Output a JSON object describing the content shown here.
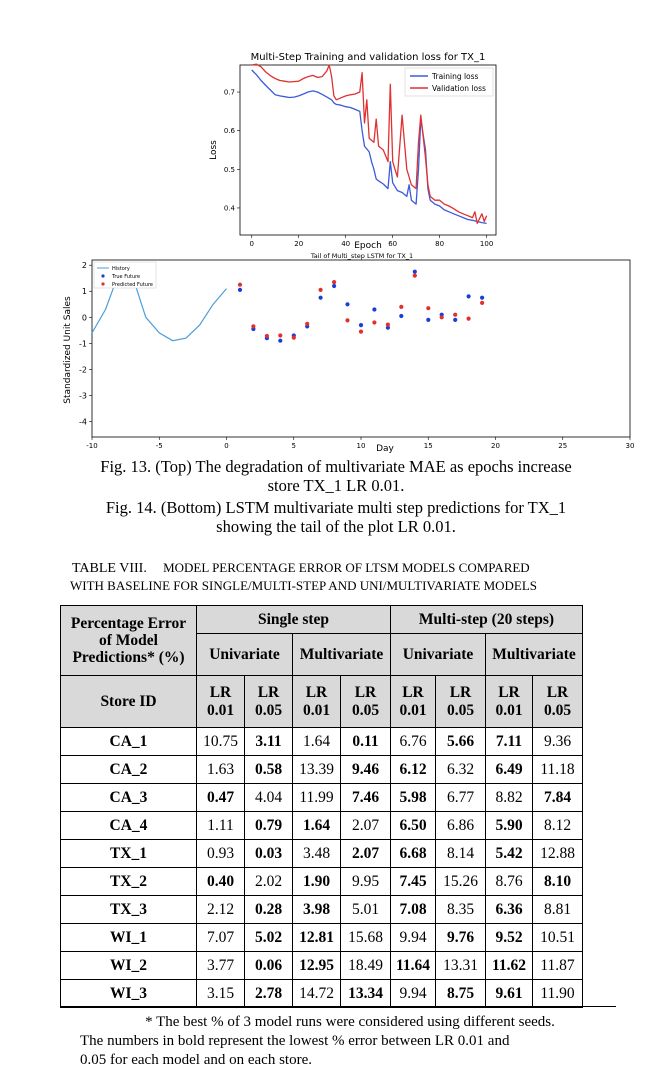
{
  "chart_data": [
    {
      "type": "line",
      "title": "Multi-Step Training and validation loss for TX_1",
      "xlabel": "Epoch",
      "ylabel": "Loss",
      "xlim": [
        -5,
        104
      ],
      "ylim": [
        0.33,
        0.77
      ],
      "xticks": [
        "0",
        "20",
        "40",
        "60",
        "80",
        "100"
      ],
      "yticks": [
        "0.4",
        "0.5",
        "0.6",
        "0.7"
      ],
      "legend_position": "top-right",
      "series": [
        {
          "name": "Training loss",
          "color": "#3b5bdb",
          "x": [
            0,
            2,
            4,
            6,
            8,
            10,
            12,
            14,
            16,
            18,
            20,
            22,
            24,
            26,
            28,
            30,
            32,
            34,
            35,
            36,
            38,
            40,
            42,
            44,
            46,
            47,
            48,
            50,
            51,
            52,
            53,
            54,
            56,
            58,
            59,
            60,
            61,
            62,
            64,
            66,
            67,
            68,
            70,
            71,
            72,
            74,
            75,
            76,
            78,
            80,
            82,
            84,
            86,
            88,
            90,
            92,
            94,
            96,
            98,
            100
          ],
          "y": [
            0.757,
            0.745,
            0.73,
            0.717,
            0.705,
            0.693,
            0.69,
            0.688,
            0.686,
            0.687,
            0.69,
            0.695,
            0.7,
            0.703,
            0.7,
            0.694,
            0.687,
            0.68,
            0.672,
            0.668,
            0.666,
            0.662,
            0.66,
            0.655,
            0.65,
            0.6,
            0.56,
            0.545,
            0.52,
            0.5,
            0.475,
            0.47,
            0.462,
            0.45,
            0.52,
            0.465,
            0.455,
            0.445,
            0.44,
            0.43,
            0.46,
            0.42,
            0.41,
            0.5,
            0.63,
            0.55,
            0.45,
            0.42,
            0.41,
            0.405,
            0.395,
            0.39,
            0.385,
            0.38,
            0.375,
            0.37,
            0.368,
            0.365,
            0.362,
            0.36
          ]
        },
        {
          "name": "Validation loss",
          "color": "#e03131",
          "x": [
            0,
            2,
            4,
            6,
            8,
            10,
            12,
            14,
            16,
            18,
            20,
            22,
            24,
            26,
            28,
            30,
            32,
            33,
            34,
            35,
            36,
            38,
            40,
            42,
            44,
            46,
            47,
            48,
            49,
            50,
            52,
            53,
            54,
            56,
            58,
            59,
            60,
            61,
            62,
            64,
            66,
            67,
            68,
            70,
            71,
            72,
            74,
            75,
            76,
            78,
            80,
            82,
            84,
            86,
            88,
            90,
            92,
            94,
            95,
            96,
            98,
            99,
            100
          ],
          "y": [
            0.77,
            0.772,
            0.765,
            0.752,
            0.742,
            0.735,
            0.73,
            0.728,
            0.726,
            0.727,
            0.728,
            0.735,
            0.74,
            0.743,
            0.738,
            0.74,
            0.755,
            0.77,
            0.74,
            0.69,
            0.68,
            0.685,
            0.69,
            0.693,
            0.695,
            0.7,
            0.75,
            0.62,
            0.68,
            0.58,
            0.57,
            0.63,
            0.56,
            0.55,
            0.52,
            0.72,
            0.52,
            0.5,
            0.48,
            0.64,
            0.5,
            0.48,
            0.46,
            0.45,
            0.57,
            0.64,
            0.53,
            0.46,
            0.43,
            0.42,
            0.42,
            0.41,
            0.405,
            0.398,
            0.39,
            0.385,
            0.38,
            0.375,
            0.39,
            0.36,
            0.385,
            0.365,
            0.38
          ]
        }
      ]
    },
    {
      "type": "scatter",
      "title": "Tail of Multi_step LSTM for TX_1",
      "xlabel": "Day",
      "ylabel": "Standardized Unit Sales",
      "xlim": [
        -10,
        30
      ],
      "ylim": [
        -4.6,
        2.2
      ],
      "xticks": [
        "-10",
        "-5",
        "0",
        "5",
        "10",
        "15",
        "20",
        "25",
        "30"
      ],
      "yticks": [
        "2",
        "1",
        "0",
        "-1",
        "-2",
        "-3",
        "-4"
      ],
      "legend_position": "top-left",
      "series": [
        {
          "name": "History",
          "color": "#4c9ed9",
          "mode": "line",
          "x": [
            -10,
            -9,
            -8,
            -7,
            -6,
            -5,
            -4,
            -3,
            -2,
            -1,
            0
          ],
          "y": [
            -0.6,
            0.3,
            1.7,
            1.6,
            0.0,
            -0.6,
            -0.9,
            -0.8,
            -0.3,
            0.5,
            1.1
          ]
        },
        {
          "name": "True Future",
          "color": "#1a3fd6",
          "mode": "points",
          "x": [
            1,
            2,
            3,
            4,
            5,
            6,
            7,
            8,
            9,
            10,
            11,
            12,
            13,
            14,
            15,
            16,
            17,
            18,
            19
          ],
          "y": [
            1.05,
            -0.45,
            -0.8,
            -0.9,
            -0.7,
            -0.35,
            0.75,
            1.2,
            0.5,
            -0.3,
            0.3,
            -0.4,
            0.05,
            1.75,
            -0.1,
            0.1,
            -0.1,
            0.8,
            0.75
          ]
        },
        {
          "name": "Predicted Future",
          "color": "#e03131",
          "mode": "points",
          "x": [
            1,
            2,
            3,
            4,
            5,
            6,
            7,
            8,
            9,
            10,
            11,
            12,
            13,
            14,
            15,
            16,
            17,
            18,
            19
          ],
          "y": [
            1.25,
            -0.35,
            -0.72,
            -0.7,
            -0.78,
            -0.25,
            1.05,
            1.35,
            -0.12,
            -0.55,
            -0.2,
            -0.28,
            0.4,
            1.6,
            0.35,
            0.0,
            0.1,
            -0.05,
            0.55
          ]
        }
      ]
    }
  ],
  "captions": {
    "fig13_line1": "Fig. 13. (Top) The degradation of multivariate MAE as epochs increase",
    "fig13_line2": "store TX_1 LR 0.01.",
    "fig14_line1": "Fig. 14. (Bottom) LSTM multivariate multi step predictions for TX_1",
    "fig14_line2": "showing the tail of the plot LR 0.01."
  },
  "table_caption": {
    "label": "TABLE VIII.",
    "line1": "MODEL PERCENTAGE ERROR OF LTSM MODELS COMPARED",
    "line2": "WITH BASELINE FOR SINGLE/MULTI-STEP AND UNI/MULTIVARIATE MODELS"
  },
  "table": {
    "corner": "Percentage Error of Model Predictions* (%)",
    "group_single": "Single step",
    "group_multi": "Multi-step (20 steps)",
    "univariate": "Univariate",
    "multivariate": "Multivariate",
    "store_id": "Store ID",
    "lr_headers": [
      "LR 0.01",
      "LR 0.05",
      "LR 0.01",
      "LR 0.05",
      "LR 0.01",
      "LR 0.05",
      "LR 0.01",
      "LR 0.05"
    ],
    "rows": [
      {
        "store": "CA_1",
        "values": [
          "10.75",
          "3.11",
          "1.64",
          "0.11",
          "6.76",
          "5.66",
          "7.11",
          "9.36"
        ],
        "bold": [
          false,
          true,
          false,
          true,
          false,
          true,
          true,
          false
        ]
      },
      {
        "store": "CA_2",
        "values": [
          "1.63",
          "0.58",
          "13.39",
          "9.46",
          "6.12",
          "6.32",
          "6.49",
          "11.18"
        ],
        "bold": [
          false,
          true,
          false,
          true,
          true,
          false,
          true,
          false
        ]
      },
      {
        "store": "CA_3",
        "values": [
          "0.47",
          "4.04",
          "11.99",
          "7.46",
          "5.98",
          "6.77",
          "8.82",
          "7.84"
        ],
        "bold": [
          true,
          false,
          false,
          true,
          true,
          false,
          false,
          true
        ]
      },
      {
        "store": "CA_4",
        "values": [
          "1.11",
          "0.79",
          "1.64",
          "2.07",
          "6.50",
          "6.86",
          "5.90",
          "8.12"
        ],
        "bold": [
          false,
          true,
          true,
          false,
          true,
          false,
          true,
          false
        ]
      },
      {
        "store": "TX_1",
        "values": [
          "0.93",
          "0.03",
          "3.48",
          "2.07",
          "6.68",
          "8.14",
          "5.42",
          "12.88"
        ],
        "bold": [
          false,
          true,
          false,
          true,
          true,
          false,
          true,
          false
        ]
      },
      {
        "store": "TX_2",
        "values": [
          "0.40",
          "2.02",
          "1.90",
          "9.95",
          "7.45",
          "15.26",
          "8.76",
          "8.10"
        ],
        "bold": [
          true,
          false,
          true,
          false,
          true,
          false,
          false,
          true
        ]
      },
      {
        "store": "TX_3",
        "values": [
          "2.12",
          "0.28",
          "3.98",
          "5.01",
          "7.08",
          "8.35",
          "6.36",
          "8.81"
        ],
        "bold": [
          false,
          true,
          true,
          false,
          true,
          false,
          true,
          false
        ]
      },
      {
        "store": "WI_1",
        "values": [
          "7.07",
          "5.02",
          "12.81",
          "15.68",
          "9.94",
          "9.76",
          "9.52",
          "10.51"
        ],
        "bold": [
          false,
          true,
          true,
          false,
          false,
          true,
          true,
          false
        ]
      },
      {
        "store": "WI_2",
        "values": [
          "3.77",
          "0.06",
          "12.95",
          "18.49",
          "11.64",
          "13.31",
          "11.62",
          "11.87"
        ],
        "bold": [
          false,
          true,
          true,
          false,
          true,
          false,
          true,
          false
        ]
      },
      {
        "store": "WI_3",
        "values": [
          "3.15",
          "2.78",
          "14.72",
          "13.34",
          "9.94",
          "8.75",
          "9.61",
          "11.90"
        ],
        "bold": [
          false,
          true,
          false,
          true,
          false,
          true,
          true,
          false
        ]
      }
    ]
  },
  "footnote": {
    "line1": "* The best % of 3 model runs were considered using different seeds.",
    "line2": "The numbers in bold represent the lowest % error between LR 0.01 and",
    "line3": "0.05 for each model and on each store."
  }
}
